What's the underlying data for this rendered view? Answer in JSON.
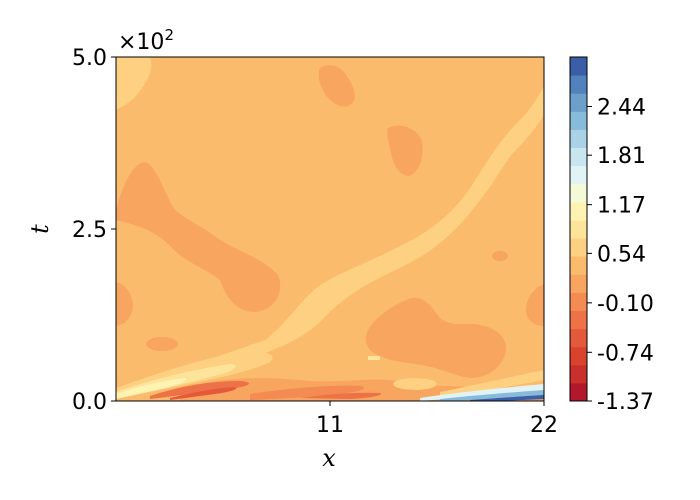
{
  "chart_data": {
    "type": "heatmap",
    "title": "",
    "xlabel": "x",
    "ylabel": "t",
    "x_range": [
      0,
      22
    ],
    "y_range": [
      0,
      500
    ],
    "x_ticks": [
      {
        "value": 11,
        "label": "11"
      },
      {
        "value": 22,
        "label": "22"
      }
    ],
    "y_ticks": [
      {
        "value": 0,
        "label": "0.0"
      },
      {
        "value": 250,
        "label": "2.5"
      },
      {
        "value": 500,
        "label": "5.0"
      }
    ],
    "y_scale_prefix": "×10",
    "y_scale_exponent": "2",
    "colormap": "RdYlBu",
    "colorbar": {
      "min": -1.37,
      "max": 3.08,
      "tick_labels": [
        "2.44",
        "1.81",
        "1.17",
        "0.54",
        "-0.10",
        "-0.74",
        "-1.37"
      ],
      "tick_values": [
        2.44,
        1.81,
        1.17,
        0.54,
        -0.1,
        -0.74,
        -1.37
      ],
      "levels": 18,
      "colors": [
        "#b2182b",
        "#c9302c",
        "#d9432e",
        "#e5593b",
        "#ee7247",
        "#f38b52",
        "#f8a55f",
        "#fbbb6c",
        "#fdd082",
        "#fee49a",
        "#fff3b4",
        "#f5fad6",
        "#e2f3f6",
        "#c8e6f0",
        "#a9d2e7",
        "#88bada",
        "#6d9fcb",
        "#5182bb",
        "#3b5fa6"
      ]
    },
    "background_value": -0.1,
    "regions": [
      {
        "level": -0.42,
        "desc": "darker orange patches"
      },
      {
        "level": 0.22,
        "desc": "light yellow-orange band"
      },
      {
        "level": 0.54,
        "desc": "pale yellow streaks"
      },
      {
        "level": -1.05,
        "desc": "red streaks near bottom"
      },
      {
        "level": 2.0,
        "desc": "blue streak near bottom right"
      }
    ]
  }
}
